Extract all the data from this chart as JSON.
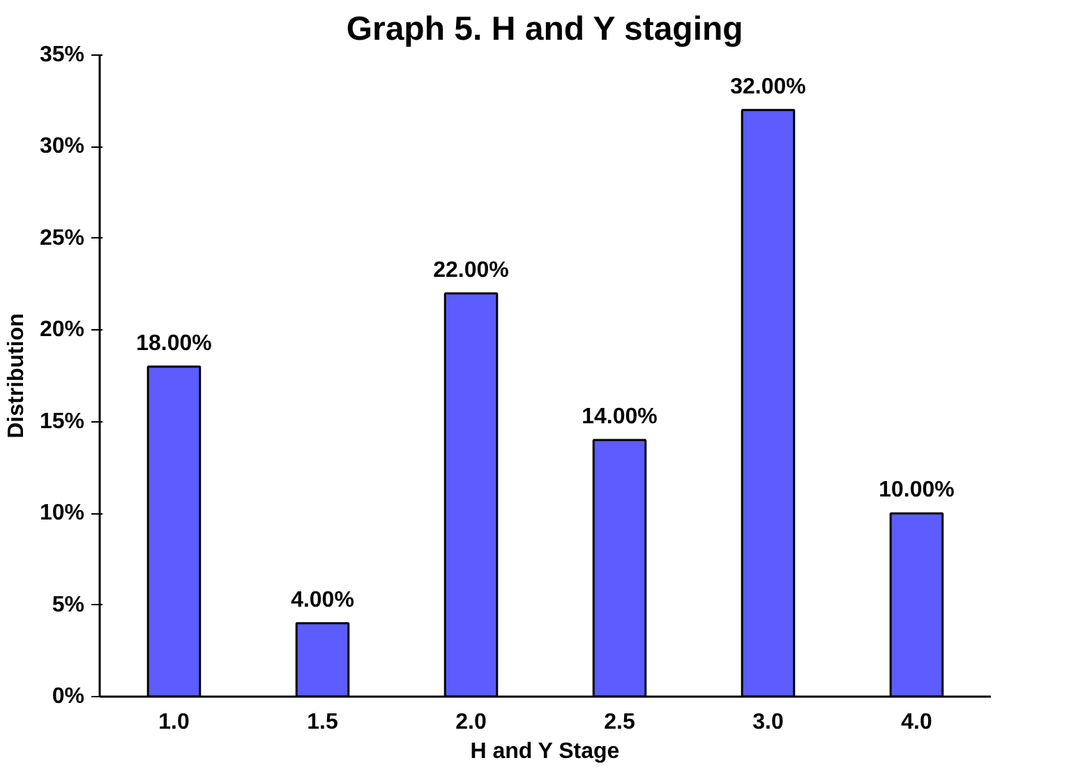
{
  "chart_data": {
    "type": "bar",
    "title": "Graph 5. H and Y staging",
    "xlabel": "H and Y Stage",
    "ylabel": "Distribution",
    "categories": [
      "1.0",
      "1.5",
      "2.0",
      "2.5",
      "3.0",
      "4.0"
    ],
    "values": [
      18,
      4,
      22,
      14,
      32,
      10
    ],
    "value_labels": [
      "18.00%",
      "4.00%",
      "22.00%",
      "14.00%",
      "32.00%",
      "10.00%"
    ],
    "color": "#5c5cff",
    "ylim": [
      0,
      35
    ],
    "yticks": [
      {
        "value": 0,
        "label": "0%"
      },
      {
        "value": 5,
        "label": "5%"
      },
      {
        "value": 10,
        "label": "10%"
      },
      {
        "value": 15,
        "label": "15%"
      },
      {
        "value": 20,
        "label": "20%"
      },
      {
        "value": 25,
        "label": "25%"
      },
      {
        "value": 30,
        "label": "30%"
      },
      {
        "value": 35,
        "label": "35%"
      }
    ],
    "grid": false
  }
}
